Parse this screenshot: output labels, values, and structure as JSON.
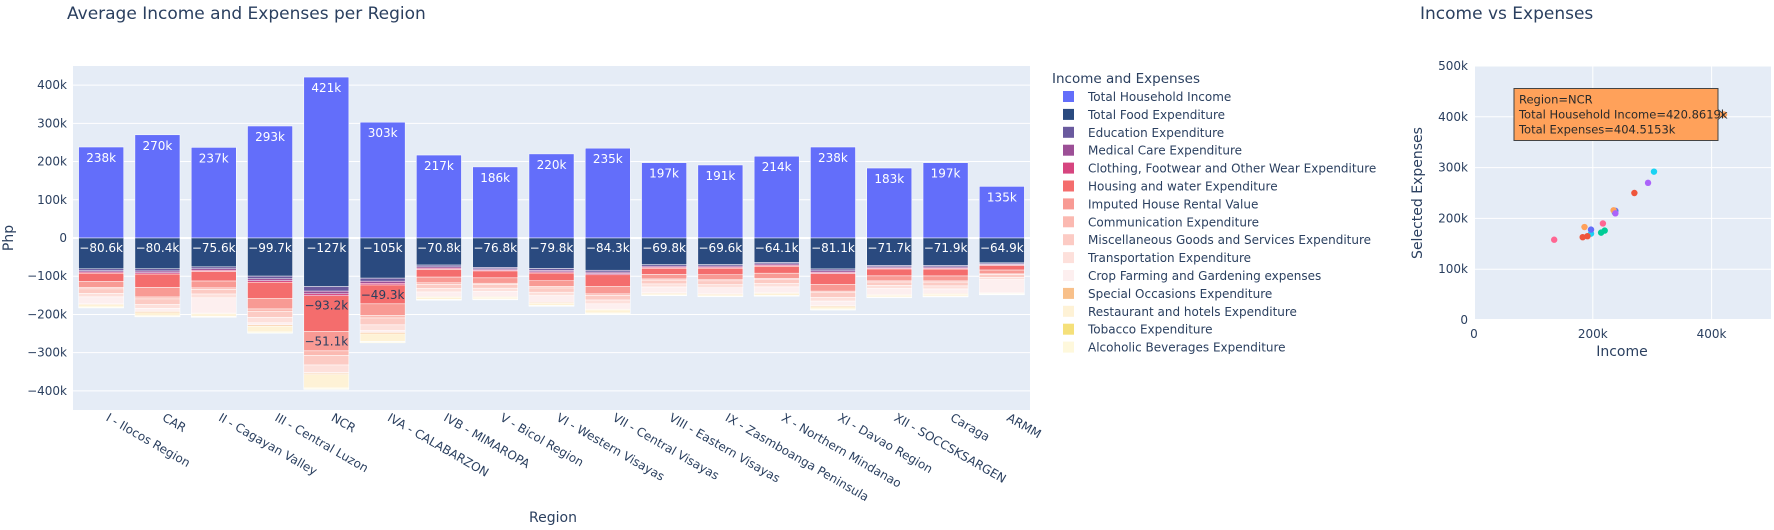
{
  "chart_data": [
    {
      "type": "bar",
      "barmode": "relative",
      "title": "Average Income and Expenses per Region",
      "xlabel": "Region",
      "ylabel": "Php",
      "ylim": [
        -450000,
        450000
      ],
      "yticks": [
        400000,
        300000,
        200000,
        100000,
        0,
        -100000,
        -200000,
        -300000,
        -400000
      ],
      "ytick_labels": [
        "400k",
        "300k",
        "200k",
        "100k",
        "0",
        "−100k",
        "−200k",
        "−300k",
        "−400k"
      ],
      "grid": true,
      "legend_title": "Income and Expenses",
      "legend_position": "right",
      "categories": [
        "I - Ilocos Region",
        "CAR",
        "II - Cagayan Valley",
        "III - Central Luzon",
        "NCR",
        "IVA - CALABARZON",
        "IVB - MIMAROPA",
        "V - Bicol Region",
        "VI - Western Visayas",
        "VII - Central Visayas",
        "VIII - Eastern Visayas",
        "IX - Zasmboanga Peninsula",
        "X - Northern Mindanao",
        "XI - Davao Region",
        "XII - SOCCSKSARGEN",
        "Caraga",
        "ARMM"
      ],
      "series": [
        {
          "name": "Total Household Income",
          "color": "#636efa",
          "values": [
            238000,
            270000,
            237000,
            293000,
            421000,
            303000,
            217000,
            186000,
            220000,
            235000,
            197000,
            191000,
            214000,
            238000,
            183000,
            197000,
            135000
          ],
          "labels": [
            "238k",
            "270k",
            "237k",
            "293k",
            "421k",
            "303k",
            "217k",
            "186k",
            "220k",
            "235k",
            "197k",
            "191k",
            "214k",
            "238k",
            "183k",
            "197k",
            "135k"
          ]
        },
        {
          "name": "Total Food Expenditure",
          "color": "#2a4a7f",
          "values": [
            -80600,
            -80400,
            -75600,
            -99700,
            -127000,
            -105000,
            -70800,
            -76800,
            -79800,
            -84300,
            -69800,
            -69600,
            -64100,
            -81100,
            -71700,
            -71900,
            -64900
          ],
          "labels": [
            "−80.6k",
            "−80.4k",
            "−75.6k",
            "−99.7k",
            "−127k",
            "−105k",
            "−70.8k",
            "−76.8k",
            "−79.8k",
            "−84.3k",
            "−69.8k",
            "−69.6k",
            "−64.1k",
            "−81.1k",
            "−71.7k",
            "−71.9k",
            "−64.9k"
          ]
        },
        {
          "name": "Education Expenditure",
          "color": "#6a5a9e",
          "values": [
            -5000,
            -6000,
            -5000,
            -7000,
            -12000,
            -8000,
            -5000,
            -4000,
            -5000,
            -5000,
            -4000,
            -4000,
            -4000,
            -5000,
            -4000,
            -4000,
            -3000
          ]
        },
        {
          "name": "Medical Care Expenditure",
          "color": "#9c4f96",
          "values": [
            -3500,
            -4500,
            -4000,
            -5000,
            -7000,
            -5500,
            -3500,
            -3000,
            -4000,
            -4000,
            -3000,
            -3000,
            -3500,
            -4000,
            -3000,
            -3000,
            -2000
          ]
        },
        {
          "name": "Clothing, Footwear and Other Wear Expenditure",
          "color": "#d6457f",
          "values": [
            -3000,
            -3500,
            -3000,
            -4000,
            -5000,
            -4500,
            -3000,
            -2500,
            -3000,
            -3000,
            -2500,
            -2500,
            -2500,
            -3000,
            -2500,
            -2500,
            -2000
          ]
        },
        {
          "name": "Housing and water Expenditure",
          "color": "#f46d6d",
          "values": [
            -22000,
            -35000,
            -25000,
            -42000,
            -93200,
            -49300,
            -20000,
            -18000,
            -20000,
            -30000,
            -16000,
            -17000,
            -18000,
            -28000,
            -18000,
            -18000,
            -12000
          ],
          "labels": [
            "",
            "",
            "",
            "",
            "−93.2k",
            "−49.3k",
            "",
            "",
            "",
            "",
            "",
            "",
            "",
            "",
            "",
            "",
            ""
          ]
        },
        {
          "name": "Imputed House Rental Value",
          "color": "#f89a94",
          "values": [
            -15000,
            -25000,
            -18000,
            -28000,
            -51100,
            -30000,
            -15000,
            -14000,
            -15000,
            -20000,
            -12000,
            -13000,
            -14000,
            -18000,
            -13000,
            -13000,
            -10000
          ],
          "labels": [
            "",
            "",
            "",
            "",
            "−51.1k",
            "",
            "",
            "",
            "",
            "",
            "",
            "",
            "",
            "",
            "",
            "",
            ""
          ]
        },
        {
          "name": "Communication Expenditure",
          "color": "#fbb9b1",
          "values": [
            -4000,
            -5000,
            -4000,
            -6000,
            -12000,
            -7000,
            -4000,
            -3000,
            -4000,
            -4000,
            -3000,
            -3000,
            -3000,
            -4000,
            -3000,
            -3000,
            -2000
          ]
        },
        {
          "name": "Miscellaneous Goods and Services Expenditure",
          "color": "#fccbc4",
          "values": [
            -12000,
            -14000,
            -12000,
            -16000,
            -25000,
            -18000,
            -11000,
            -10000,
            -11000,
            -12000,
            -10000,
            -10000,
            -10000,
            -12000,
            -9000,
            -10000,
            -7000
          ]
        },
        {
          "name": "Transportation Expenditure",
          "color": "#fde0db",
          "values": [
            -9000,
            -11000,
            -10000,
            -14000,
            -20000,
            -15000,
            -9000,
            -8000,
            -9000,
            -10000,
            -8000,
            -8000,
            -9000,
            -10000,
            -8000,
            -8000,
            -6000
          ]
        },
        {
          "name": "Crop Farming and Gardening expenses",
          "color": "#fdefef",
          "values": [
            -18000,
            -8000,
            -40000,
            -6000,
            -2000,
            -5000,
            -12000,
            -14000,
            -18000,
            -14000,
            -15000,
            -16000,
            -15000,
            -12000,
            -16000,
            -12000,
            -35000
          ]
        },
        {
          "name": "Special Occasions Expenditure",
          "color": "#f8c08a",
          "values": [
            -2000,
            -3000,
            -2000,
            -3000,
            -3000,
            -3500,
            -2000,
            -2000,
            -2500,
            -2000,
            -2000,
            -2000,
            -2000,
            -2500,
            -2000,
            -2000,
            -1000
          ]
        },
        {
          "name": "Restaurant and hotels Expenditure",
          "color": "#fef2d6",
          "values": [
            -6000,
            -8000,
            -6000,
            -15000,
            -35000,
            -20000,
            -5000,
            -4000,
            -5000,
            -8000,
            -3500,
            -3500,
            -5000,
            -6000,
            -4000,
            -4500,
            -2000
          ]
        },
        {
          "name": "Tobacco Expenditure",
          "color": "#f5e07a",
          "values": [
            -1000,
            -1000,
            -1000,
            -1000,
            -1000,
            -1000,
            -1000,
            -1000,
            -1000,
            -1000,
            -800,
            -800,
            -800,
            -1000,
            -800,
            -800,
            -500
          ]
        },
        {
          "name": "Alcoholic Beverages Expenditure",
          "color": "#fef8dc",
          "values": [
            -2000,
            -2000,
            -2000,
            -2500,
            -3000,
            -2500,
            -1500,
            -1500,
            -1500,
            -2000,
            -1500,
            -1500,
            -1500,
            -2000,
            -1500,
            -1500,
            -1000
          ]
        }
      ]
    },
    {
      "type": "scatter",
      "title": "Income vs Expenses",
      "xlabel": "Income",
      "ylabel": "Selected Expenses",
      "xlim": [
        0,
        500000
      ],
      "ylim": [
        0,
        500000
      ],
      "xticks": [
        0,
        200000,
        400000
      ],
      "xtick_labels": [
        "0",
        "200k",
        "400k"
      ],
      "yticks": [
        0,
        100000,
        200000,
        300000,
        400000,
        500000
      ],
      "ytick_labels": [
        "0",
        "100k",
        "200k",
        "300k",
        "400k",
        "500k"
      ],
      "grid": true,
      "points": [
        {
          "x": 238000,
          "y": 215000,
          "color": "#636efa"
        },
        {
          "x": 270000,
          "y": 250000,
          "color": "#ef553b"
        },
        {
          "x": 237000,
          "y": 212000,
          "color": "#00cc96"
        },
        {
          "x": 293000,
          "y": 270000,
          "color": "#ab63fa"
        },
        {
          "x": 420861.9,
          "y": 404515.3,
          "color": "#ffa15a"
        },
        {
          "x": 303000,
          "y": 292000,
          "color": "#19d3f3"
        },
        {
          "x": 217000,
          "y": 190000,
          "color": "#ff6692"
        },
        {
          "x": 186000,
          "y": 183000,
          "color": "#ffa15a"
        },
        {
          "x": 220000,
          "y": 176000,
          "color": "#00cc96"
        },
        {
          "x": 235000,
          "y": 216000,
          "color": "#ffa15a"
        },
        {
          "x": 197000,
          "y": 170000,
          "color": "#19d3f3"
        },
        {
          "x": 191000,
          "y": 165000,
          "color": "#ef553b"
        },
        {
          "x": 214000,
          "y": 172000,
          "color": "#00cc96"
        },
        {
          "x": 238000,
          "y": 210000,
          "color": "#ab63fa"
        },
        {
          "x": 183000,
          "y": 163000,
          "color": "#ef553b"
        },
        {
          "x": 197000,
          "y": 178000,
          "color": "#636efa"
        },
        {
          "x": 135000,
          "y": 158000,
          "color": "#ff6692"
        }
      ],
      "tooltip": {
        "lines": [
          "Region=NCR",
          "Total Household Income=420.8619k",
          "Total Expenses=404.5153k"
        ],
        "fill": "#ffa15a"
      }
    }
  ]
}
